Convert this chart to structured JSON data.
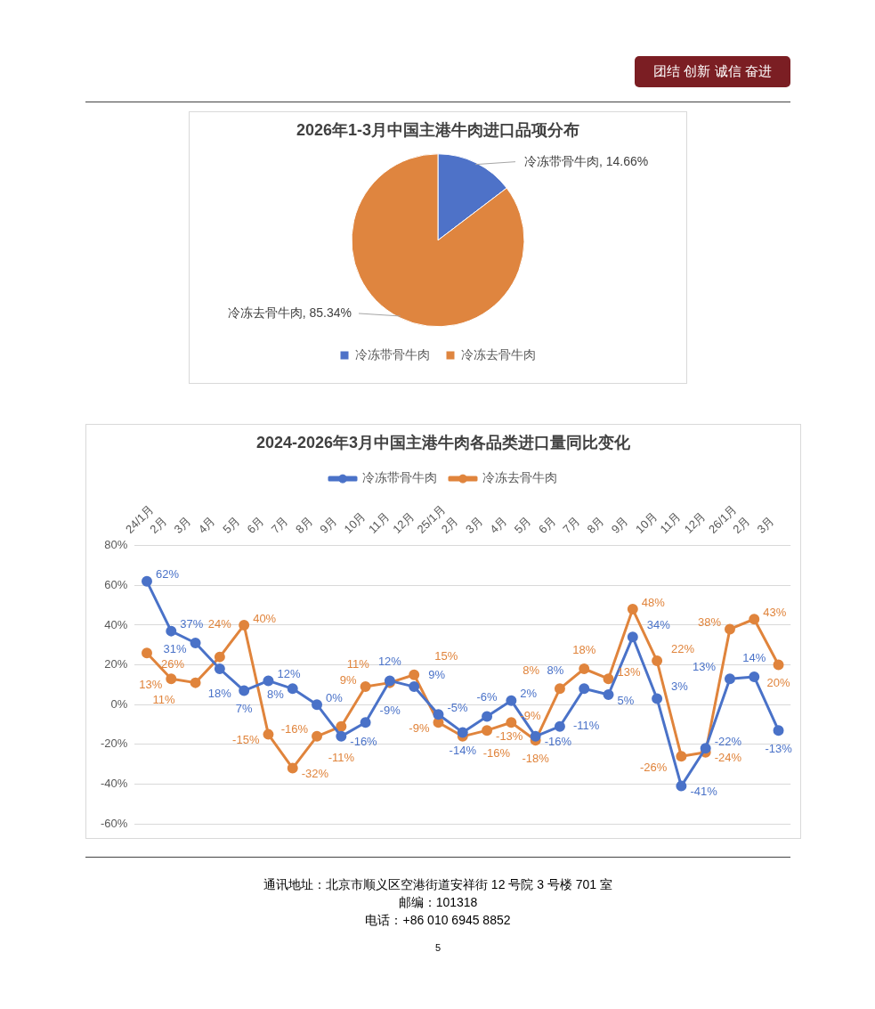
{
  "chart_data": [
    {
      "type": "pie",
      "title": "2026年1-3月中国主港牛肉进口品项分布",
      "categories": [
        "冷冻带骨牛肉",
        "冷冻去骨牛肉"
      ],
      "values": [
        14.66,
        85.34
      ],
      "colors": [
        "#4e72c8",
        "#df853f"
      ],
      "value_labels": [
        "冷冻带骨牛肉, 14.66%",
        "冷冻去骨牛肉, 85.34%"
      ],
      "legend": "bottom",
      "annotations": [
        "团结 创新 诚信 奋进"
      ]
    },
    {
      "type": "line",
      "title": "2024-2026年3月中国主港牛肉各品类进口量同比变化",
      "categories": [
        "24/1月",
        "2月",
        "3月",
        "4月",
        "5月",
        "6月",
        "7月",
        "8月",
        "9月",
        "10月",
        "11月",
        "12月",
        "25/1月",
        "2月",
        "3月",
        "4月",
        "5月",
        "6月",
        "7月",
        "8月",
        "9月",
        "10月",
        "11月",
        "12月",
        "26/1月",
        "2月",
        "3月"
      ],
      "series": [
        {
          "name": "冷冻带骨牛肉",
          "color": "#4a72c8",
          "values": [
            62,
            37,
            31,
            18,
            7,
            12,
            8,
            0,
            -16,
            -9,
            12,
            9,
            -5,
            -14,
            -6,
            2,
            -16,
            -11,
            8,
            5,
            34,
            3,
            -41,
            -22,
            13,
            14,
            -13
          ],
          "value_labels": [
            "62%",
            "37%",
            "31%",
            "18%",
            "7%",
            "12%",
            "8%",
            "0%",
            "-16%",
            "-9%",
            "12%",
            "9%",
            "-5%",
            "-14%",
            "-6%",
            "2%",
            "-16%",
            "-11%",
            "8%",
            "5%",
            "34%",
            "3%",
            "-41%",
            "-22%",
            "13%",
            "14%",
            "-13%"
          ]
        },
        {
          "name": "冷冻去骨牛肉",
          "color": "#e0843c",
          "values": [
            26,
            13,
            11,
            24,
            40,
            -15,
            -32,
            -16,
            -11,
            9,
            11,
            15,
            -9,
            -16,
            -13,
            -9,
            -18,
            8,
            18,
            13,
            48,
            22,
            -26,
            -24,
            38,
            43,
            20
          ],
          "value_labels": [
            "26%",
            "13%",
            "11%",
            "24%",
            "40%",
            "-15%",
            "-32%",
            "-16%",
            "-11%",
            "9%",
            "11%",
            "15%",
            "-9%",
            "-16%",
            "-13%",
            "-9%",
            "-18%",
            "8%",
            "18%",
            "13%",
            "48%",
            "22%",
            "-26%",
            "-24%",
            "38%",
            "43%",
            "20%"
          ]
        }
      ],
      "ylim": [
        -60,
        80
      ],
      "yticks": [
        {
          "value": -60,
          "label": "-60%"
        },
        {
          "value": -40,
          "label": "-40%"
        },
        {
          "value": -20,
          "label": "-20%"
        },
        {
          "value": 0,
          "label": "0%"
        },
        {
          "value": 20,
          "label": "20%"
        },
        {
          "value": 40,
          "label": "40%"
        },
        {
          "value": 60,
          "label": "60%"
        },
        {
          "value": 80,
          "label": "80%"
        }
      ],
      "grid": "y",
      "legend": "top",
      "marker": "circle",
      "line_style": "solid",
      "annotations": [
        "通讯地址：北京市顺义区空港街道安祥街 12 号院 3 号楼 701 室",
        "邮编：101318",
        "电话：+86 010 6945 8852",
        "5"
      ]
    }
  ]
}
